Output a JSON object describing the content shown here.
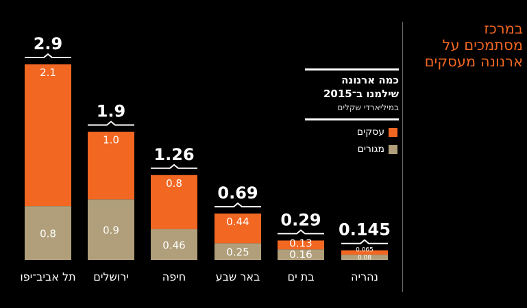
{
  "side_title": [
    "במרכז",
    "מסתמכים על",
    "ארנונה מעסקים"
  ],
  "legend": {
    "title_line1": "כמה ארנונה",
    "title_line2": "שילמנו ב־2015",
    "subtitle": "במיליארדי שקלים",
    "items": [
      {
        "label": "עסקים",
        "color": "#f26722"
      },
      {
        "label": "מגורים",
        "color": "#b09f7a"
      }
    ]
  },
  "chart_data": {
    "type": "bar",
    "stacked": true,
    "title": "כמה ארנונה שילמנו ב־2015",
    "ylabel": "במיליארדי שקלים",
    "categories": [
      "תל אביב־יפו",
      "ירושלים",
      "חיפה",
      "באר שבע",
      "בת ים",
      "נהריה"
    ],
    "totals": [
      "2.9",
      "1.9",
      "1.26",
      "0.69",
      "0.29",
      "0.145"
    ],
    "series": [
      {
        "name": "מגורים",
        "color": "#b09f7a",
        "values": [
          0.8,
          0.9,
          0.46,
          0.25,
          0.16,
          0.08
        ],
        "labels": [
          "0.8",
          "0.9",
          "0.46",
          "0.25",
          "0.16",
          "0.08"
        ]
      },
      {
        "name": "עסקים",
        "color": "#f26722",
        "values": [
          2.1,
          1.0,
          0.8,
          0.44,
          0.13,
          0.065
        ],
        "labels": [
          "2.1",
          "1.0",
          "0.8",
          "0.44",
          "0.13",
          "0.065"
        ]
      }
    ]
  }
}
